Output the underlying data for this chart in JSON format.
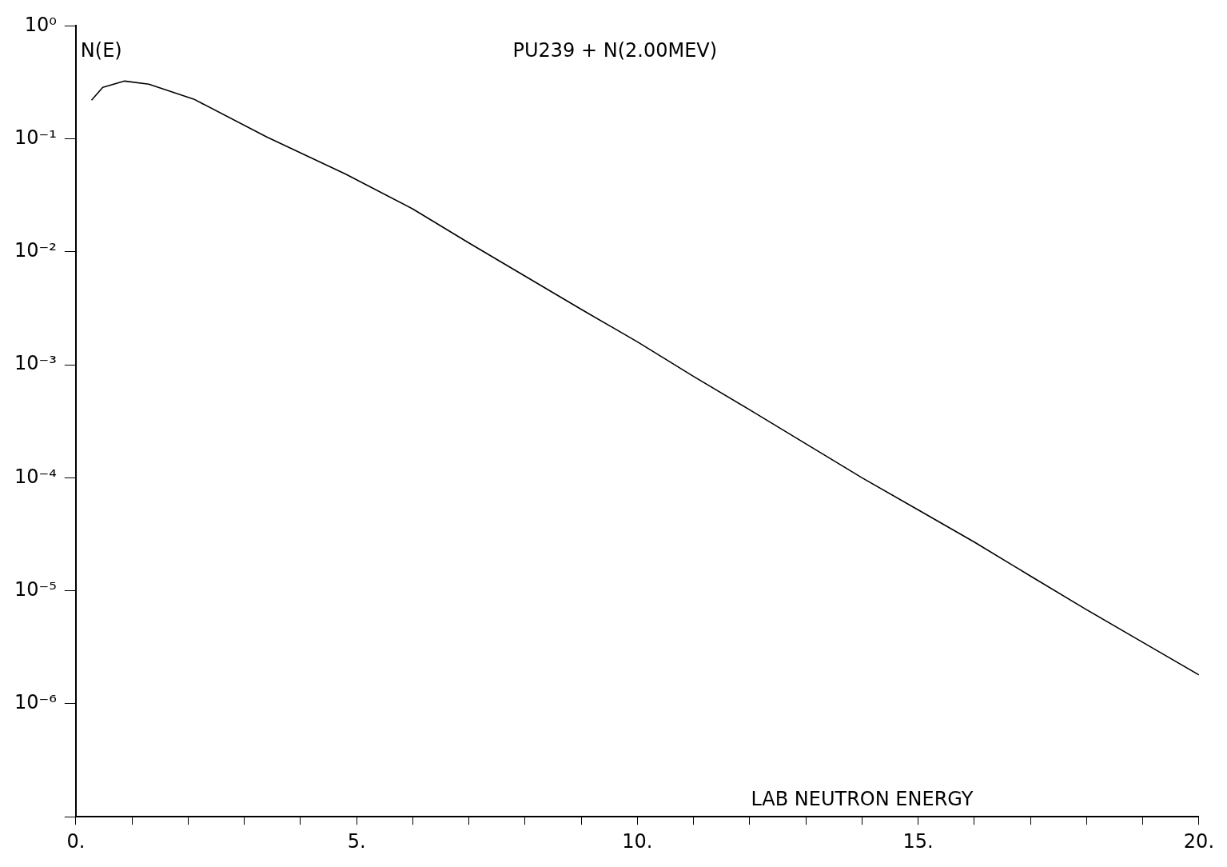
{
  "chart_data": {
    "type": "line",
    "title": "PU239 + N(2.00MEV)",
    "xlabel": "LAB NEUTRON ENERGY",
    "ylabel": "N(E)",
    "x": [
      0.28,
      0.48,
      0.87,
      1.3,
      2.1,
      3.4,
      4.8,
      6,
      7,
      8,
      9,
      10,
      11,
      12,
      13,
      14,
      15,
      16,
      17,
      18,
      19,
      20
    ],
    "series": [
      {
        "color": "#000000",
        "values": [
          0.22,
          0.286,
          0.325,
          0.305,
          0.225,
          0.104,
          0.049,
          0.024,
          0.012,
          0.0061,
          0.0031,
          0.0016,
          0.00079,
          0.0004,
          0.0002,
          0.0001,
          5.2e-05,
          2.7e-05,
          1.35e-05,
          6.8e-06,
          3.5e-06,
          1.8e-06
        ]
      }
    ],
    "xlim": [
      0,
      20
    ],
    "xticks": [
      {
        "value": 0,
        "label": "0."
      },
      {
        "value": 1,
        "label": null
      },
      {
        "value": 2,
        "label": null
      },
      {
        "value": 3,
        "label": null
      },
      {
        "value": 4,
        "label": null
      },
      {
        "value": 5,
        "label": "5."
      },
      {
        "value": 6,
        "label": null
      },
      {
        "value": 7,
        "label": null
      },
      {
        "value": 8,
        "label": null
      },
      {
        "value": 9,
        "label": null
      },
      {
        "value": 10,
        "label": "10."
      },
      {
        "value": 11,
        "label": null
      },
      {
        "value": 12,
        "label": null
      },
      {
        "value": 13,
        "label": null
      },
      {
        "value": 14,
        "label": null
      },
      {
        "value": 15,
        "label": "15."
      },
      {
        "value": 16,
        "label": null
      },
      {
        "value": 17,
        "label": null
      },
      {
        "value": 18,
        "label": null
      },
      {
        "value": 19,
        "label": null
      },
      {
        "value": 20,
        "label": "20."
      }
    ],
    "ylim": [
      1e-07,
      1
    ],
    "yticks": [
      {
        "value": 1,
        "label": "10⁰"
      },
      {
        "value": 0.1,
        "label": "10⁻¹"
      },
      {
        "value": 0.01,
        "label": "10⁻²"
      },
      {
        "value": 0.001,
        "label": "10⁻³"
      },
      {
        "value": 0.0001,
        "label": "10⁻⁴"
      },
      {
        "value": 1e-05,
        "label": "10⁻⁵"
      },
      {
        "value": 1e-06,
        "label": "10⁻⁶"
      },
      {
        "value": 1e-07,
        "label": null
      }
    ],
    "log": "y",
    "grid": false,
    "legend": false,
    "marker": "none",
    "line_style": "solid"
  }
}
